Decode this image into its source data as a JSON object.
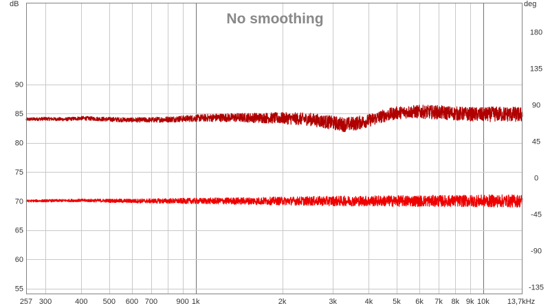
{
  "chart_data": {
    "type": "line",
    "title": "No smoothing",
    "x_scale": "log",
    "xlim": [
      257,
      13700
    ],
    "ylim": [
      54,
      104
    ],
    "y2lim": [
      -144,
      216
    ],
    "ylabel": "dB",
    "y2label": "deg",
    "grid": true,
    "x_tick_values": [
      257,
      300,
      400,
      500,
      600,
      700,
      900,
      1000,
      2000,
      3000,
      4000,
      5000,
      6000,
      7000,
      8000,
      9000,
      10000,
      13700
    ],
    "x_tick_labels": [
      "257",
      "300",
      "400",
      "500",
      "600",
      "700",
      "900",
      "1k",
      "2k",
      "3k",
      "4k",
      "5k",
      "6k",
      "7k",
      "8k",
      "9k",
      "10k",
      "13,7kHz"
    ],
    "y_ticks": [
      55,
      60,
      65,
      70,
      75,
      80,
      85,
      90
    ],
    "y2_ticks": [
      -135,
      -90,
      -45,
      0,
      45,
      90,
      135,
      180
    ],
    "series": [
      {
        "color": "#b00000",
        "x": [
          257,
          300,
          350,
          400,
          450,
          500,
          600,
          700,
          800,
          900,
          1000,
          1200,
          1500,
          2000,
          2500,
          3000,
          3300,
          3600,
          4000,
          4500,
          5000,
          5500,
          6000,
          7000,
          8000,
          9000,
          10000,
          11000,
          12000,
          13700
        ],
        "y": [
          84.0,
          84.1,
          84.0,
          84.2,
          84.1,
          84.0,
          83.9,
          83.9,
          84.0,
          84.1,
          84.2,
          84.3,
          84.3,
          84.2,
          84.0,
          83.4,
          83.1,
          83.3,
          83.8,
          84.6,
          85.1,
          85.3,
          85.3,
          85.2,
          85.0,
          84.9,
          84.8,
          84.9,
          84.9,
          84.8
        ],
        "noise": [
          0.3,
          0.3,
          0.3,
          0.35,
          0.35,
          0.4,
          0.4,
          0.45,
          0.5,
          0.55,
          0.6,
          0.7,
          0.8,
          1.0,
          1.1,
          1.2,
          1.25,
          1.2,
          1.1,
          1.1,
          1.1,
          1.1,
          1.15,
          1.2,
          1.2,
          1.2,
          1.25,
          1.3,
          1.3,
          1.3
        ]
      },
      {
        "color": "#ee0000",
        "x": [
          257,
          400,
          600,
          1000,
          2000,
          3000,
          5000,
          8000,
          10000,
          13700
        ],
        "y": [
          70.0,
          70.1,
          70.0,
          70.0,
          70.0,
          70.0,
          70.0,
          70.0,
          70.0,
          70.0
        ],
        "noise": [
          0.2,
          0.25,
          0.35,
          0.5,
          0.7,
          0.85,
          0.95,
          1.0,
          1.05,
          1.1
        ]
      }
    ]
  },
  "labels": {
    "title": "No smoothing",
    "y_left_unit": "dB",
    "y_right_unit": "deg"
  },
  "colors": {
    "background": "#ffffff",
    "grid": "#c8c8c8",
    "major_grid": "#707070",
    "axis": "#808080"
  }
}
